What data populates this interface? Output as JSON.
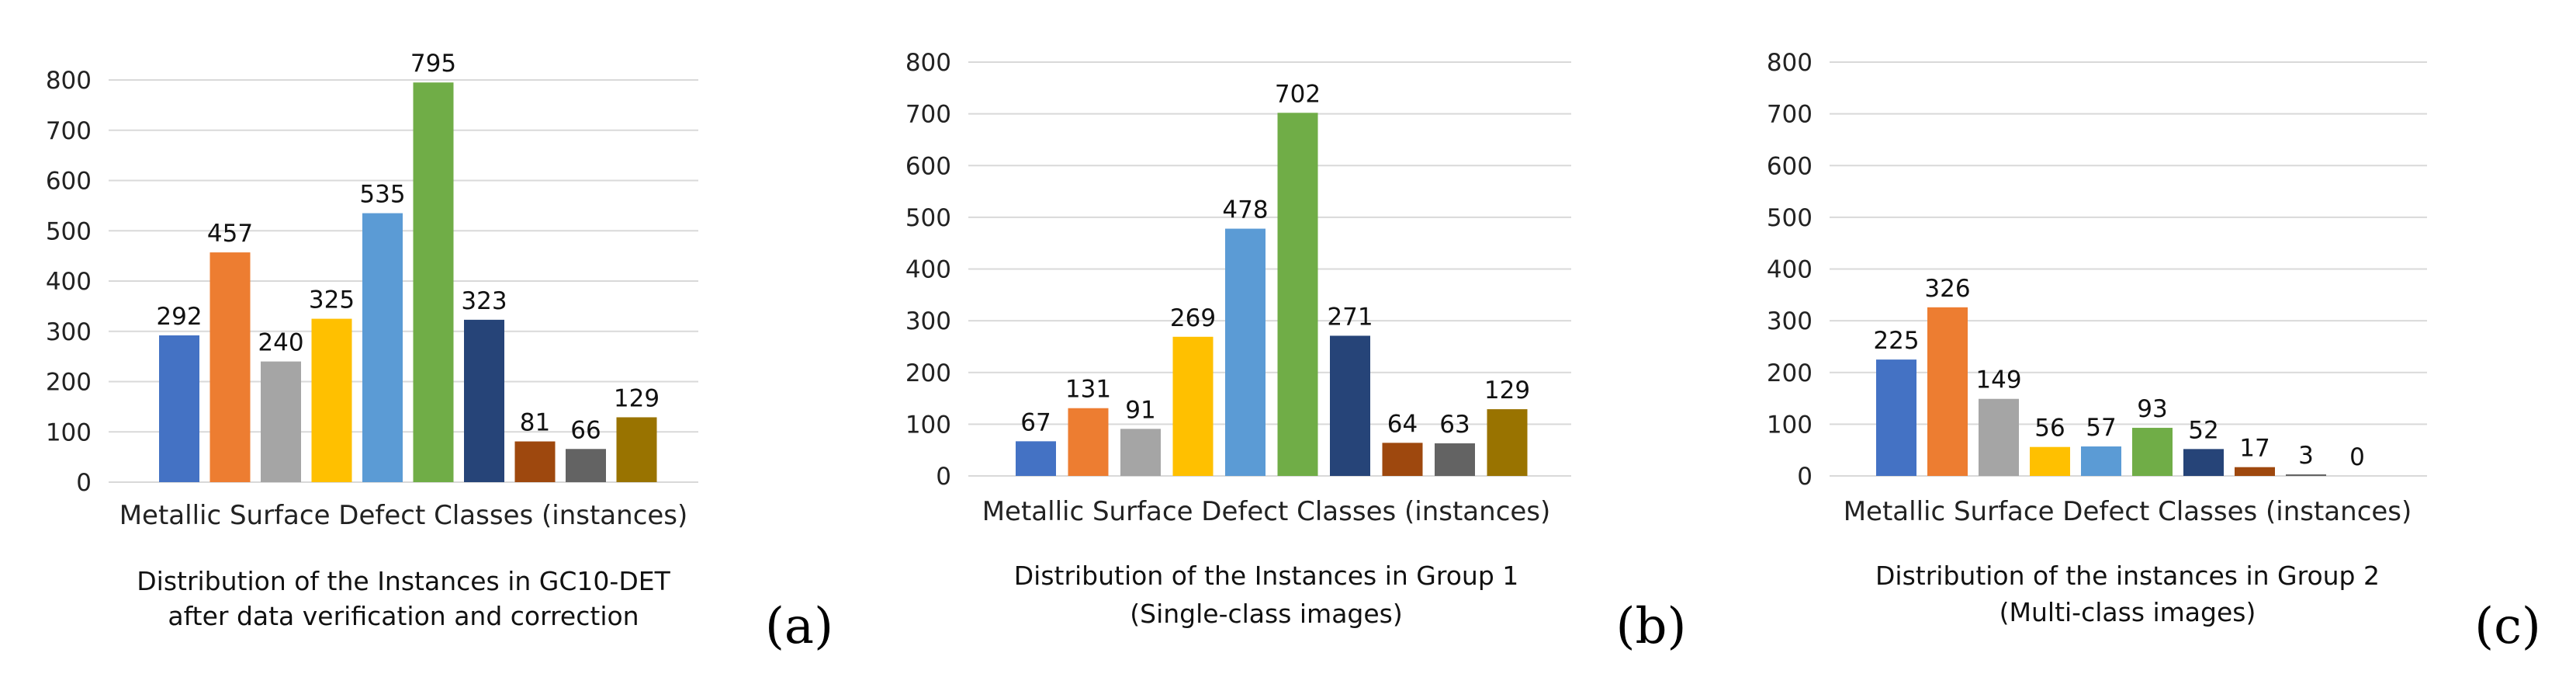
{
  "palette": [
    "#4472C4",
    "#ED7D31",
    "#A5A5A5",
    "#FFC000",
    "#5B9BD5",
    "#70AD47",
    "#264478",
    "#9E480E",
    "#636363",
    "#997300"
  ],
  "gridline_color": "#D9D9D9",
  "chart_data": [
    {
      "type": "bar",
      "panel_label": "(a)",
      "xlabel": "Metallic Surface Defect Classes (instances)",
      "caption": [
        "Distribution of the Instances in GC10-DET",
        "after data verification and correction"
      ],
      "ylim": [
        0,
        800
      ],
      "yticks": [
        0,
        100,
        200,
        300,
        400,
        500,
        600,
        700,
        800
      ],
      "grid": true,
      "values": [
        292,
        457,
        240,
        325,
        535,
        795,
        323,
        81,
        66,
        129
      ]
    },
    {
      "type": "bar",
      "panel_label": "(b)",
      "xlabel": "Metallic Surface Defect Classes (instances)",
      "caption": [
        "Distribution of the Instances in Group 1",
        "(Single-class images)"
      ],
      "ylim": [
        0,
        800
      ],
      "yticks": [
        0,
        100,
        200,
        300,
        400,
        500,
        600,
        700,
        800
      ],
      "grid": true,
      "values": [
        67,
        131,
        91,
        269,
        478,
        702,
        271,
        64,
        63,
        129
      ]
    },
    {
      "type": "bar",
      "panel_label": "(c)",
      "xlabel": "Metallic Surface Defect Classes (instances)",
      "caption": [
        "Distribution of the instances in Group 2",
        "(Multi-class images)"
      ],
      "ylim": [
        0,
        800
      ],
      "yticks": [
        0,
        100,
        200,
        300,
        400,
        500,
        600,
        700,
        800
      ],
      "grid": true,
      "values": [
        225,
        326,
        149,
        56,
        57,
        93,
        52,
        17,
        3,
        0
      ]
    }
  ]
}
